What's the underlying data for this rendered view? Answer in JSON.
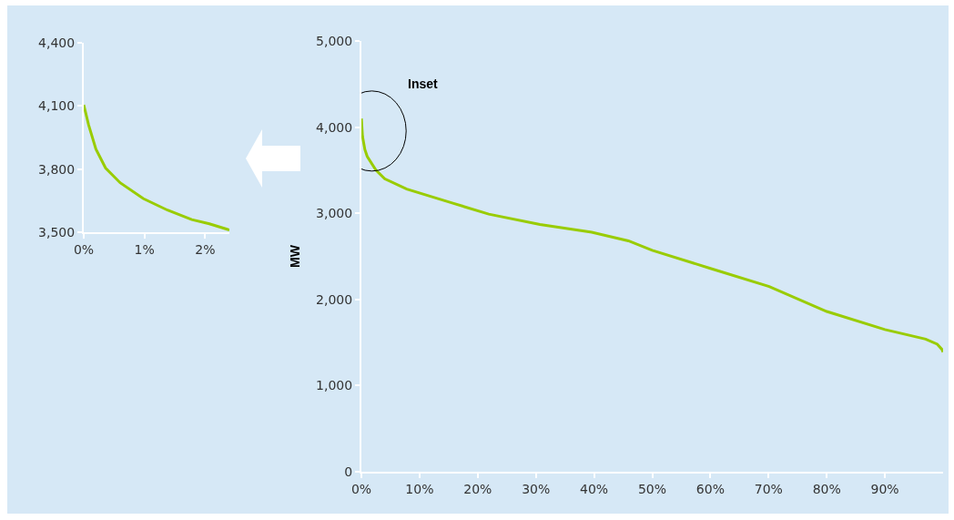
{
  "chart_data": [
    {
      "type": "line",
      "x": [
        0,
        0.08,
        0.2,
        0.36,
        0.6,
        0.98,
        1.38,
        1.78,
        2.07,
        2.35,
        2.4
      ],
      "series": [
        {
          "color": "#99cc00",
          "values": [
            4105,
            4010,
            3895,
            3805,
            3735,
            3660,
            3605,
            3560,
            3540,
            3515,
            3510
          ]
        }
      ],
      "xlim": [
        0,
        2.4
      ],
      "xticks": [
        {
          "value": 0,
          "label": "0%"
        },
        {
          "value": 1,
          "label": "1%"
        },
        {
          "value": 2,
          "label": "2%"
        }
      ],
      "ylim": [
        3500,
        4400
      ],
      "yticks": [
        {
          "value": 3500,
          "label": "3,500"
        },
        {
          "value": 3800,
          "label": "3,800"
        },
        {
          "value": 4100,
          "label": "4,100"
        },
        {
          "value": 4400,
          "label": "4,400"
        }
      ],
      "grid": false,
      "line_style": "solid",
      "marker": "none"
    },
    {
      "type": "line",
      "ylabel": "MW",
      "annotations": [
        "Inset"
      ],
      "x": [
        0,
        0.2,
        0.6,
        1,
        2.5,
        4,
        7.8,
        15.6,
        21.9,
        30.7,
        39.6,
        45.9,
        50,
        60,
        70.1,
        80,
        90,
        97,
        99,
        99.8,
        100
      ],
      "series": [
        {
          "color": "#99cc00",
          "values": [
            4100,
            3890,
            3740,
            3660,
            3500,
            3400,
            3280,
            3120,
            2990,
            2870,
            2780,
            2680,
            2570,
            2360,
            2150,
            1860,
            1650,
            1540,
            1480,
            1420,
            1390
          ]
        }
      ],
      "xlim": [
        0,
        100
      ],
      "xticks": [
        {
          "value": 0,
          "label": "0%"
        },
        {
          "value": 10,
          "label": "10%"
        },
        {
          "value": 20,
          "label": "20%"
        },
        {
          "value": 30,
          "label": "30%"
        },
        {
          "value": 40,
          "label": "40%"
        },
        {
          "value": 50,
          "label": "50%"
        },
        {
          "value": 60,
          "label": "60%"
        },
        {
          "value": 70,
          "label": "70%"
        },
        {
          "value": 80,
          "label": "80%"
        },
        {
          "value": 90,
          "label": "90%"
        }
      ],
      "ylim": [
        0,
        5000
      ],
      "yticks": [
        {
          "value": 0,
          "label": "0"
        },
        {
          "value": 1000,
          "label": "1,000"
        },
        {
          "value": 2000,
          "label": "2,000"
        },
        {
          "value": 3000,
          "label": "3,000"
        },
        {
          "value": 4000,
          "label": "4,000"
        },
        {
          "value": 5000,
          "label": "5,000"
        }
      ],
      "grid": false,
      "line_style": "solid",
      "marker": "none"
    }
  ]
}
